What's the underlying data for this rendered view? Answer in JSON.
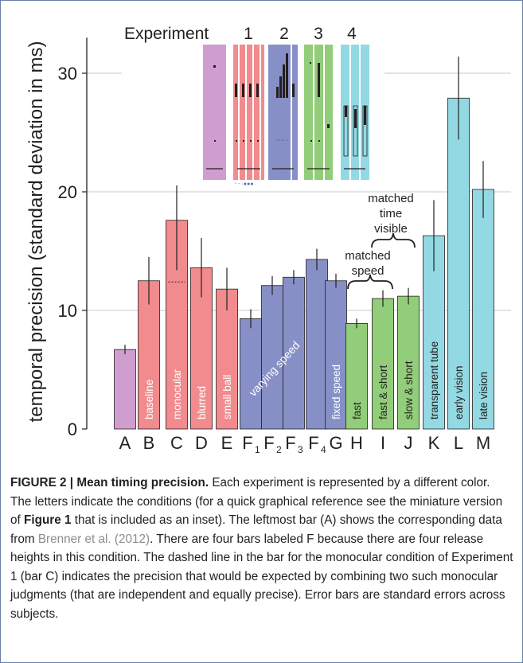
{
  "chart_data": {
    "type": "bar",
    "ylabel": "temporal precision (standard deviation in ms)",
    "ylim": [
      0,
      33
    ],
    "yticks": [
      0,
      10,
      20,
      30
    ],
    "grid": true,
    "categories": [
      "A",
      "B",
      "C",
      "D",
      "E",
      "F1",
      "F2",
      "F3",
      "F4",
      "G",
      "H",
      "I",
      "J",
      "K",
      "L",
      "M"
    ],
    "bars": [
      {
        "cat": "A",
        "tick": "A",
        "sub": "",
        "value": 6.7,
        "err": 0.4,
        "group": "A",
        "label": ""
      },
      {
        "cat": "B",
        "tick": "B",
        "sub": "",
        "value": 12.5,
        "err": 2.0,
        "group": "1",
        "label": "baseline"
      },
      {
        "cat": "C",
        "tick": "C",
        "sub": "",
        "value": 17.6,
        "err": 4.2,
        "group": "1",
        "label": "monocular",
        "expected": 12.4
      },
      {
        "cat": "D",
        "tick": "D",
        "sub": "",
        "value": 13.6,
        "err": 2.5,
        "group": "1",
        "label": "blurred"
      },
      {
        "cat": "E",
        "tick": "E",
        "sub": "",
        "value": 11.8,
        "err": 1.8,
        "group": "1",
        "label": "small ball"
      },
      {
        "cat": "F1",
        "tick": "F",
        "sub": "1",
        "value": 9.3,
        "err": 0.8,
        "group": "2",
        "label": ""
      },
      {
        "cat": "F2",
        "tick": "F",
        "sub": "2",
        "value": 12.1,
        "err": 0.8,
        "group": "2",
        "label": ""
      },
      {
        "cat": "F3",
        "tick": "F",
        "sub": "3",
        "value": 12.8,
        "err": 0.6,
        "group": "2",
        "label": ""
      },
      {
        "cat": "F4",
        "tick": "F",
        "sub": "4",
        "value": 14.3,
        "err": 0.9,
        "group": "2",
        "label": ""
      },
      {
        "cat": "G",
        "tick": "G",
        "sub": "",
        "value": 12.5,
        "err": 0.6,
        "group": "2",
        "label": "fixed speed"
      },
      {
        "cat": "H",
        "tick": "H",
        "sub": "",
        "value": 8.9,
        "err": 0.4,
        "group": "3",
        "label": "fast"
      },
      {
        "cat": "I",
        "tick": "I",
        "sub": "",
        "value": 11.0,
        "err": 0.7,
        "group": "3",
        "label": "fast & short"
      },
      {
        "cat": "J",
        "tick": "J",
        "sub": "",
        "value": 11.2,
        "err": 0.7,
        "group": "3",
        "label": "slow & short"
      },
      {
        "cat": "K",
        "tick": "K",
        "sub": "",
        "value": 16.3,
        "err": 3.0,
        "group": "4",
        "label": "transparent tube"
      },
      {
        "cat": "L",
        "tick": "L",
        "sub": "",
        "value": 27.9,
        "err": 3.5,
        "group": "4",
        "label": "early vision"
      },
      {
        "cat": "M",
        "tick": "M",
        "sub": "",
        "value": 20.2,
        "err": 2.4,
        "group": "4",
        "label": "late vision"
      }
    ],
    "span_label": "varying speed",
    "colors": {
      "A": "#cf9ecf",
      "1": "#f28b8d",
      "2": "#8790c6",
      "3": "#92cd7a",
      "4": "#93d9e3"
    },
    "inset": {
      "title": "Experiment",
      "numbers": [
        "1",
        "2",
        "3",
        "4"
      ]
    },
    "annotations": {
      "matched_speed": [
        "matched",
        "speed"
      ],
      "matched_time": [
        "matched",
        "time",
        "visible"
      ]
    }
  },
  "caption": {
    "label": "FIGURE 2 | Mean timing precision.",
    "part1": " Each experiment is represented by a different color. The letters indicate the conditions (for a quick graphical reference see the miniature version of ",
    "fig_ref": "Figure 1",
    "part2": " that is included as an inset). The leftmost bar (A) shows the corresponding data from ",
    "cite": "Brenner et al. (2012)",
    "part3": ". There are four bars labeled F because there are four release heights in this condition. The dashed line in the bar for the monocular condition of Experiment 1 (bar C) indicates the precision that would be expected by combining two such monocular judgments (that are independent and equally precise). Error bars are standard errors across subjects."
  }
}
